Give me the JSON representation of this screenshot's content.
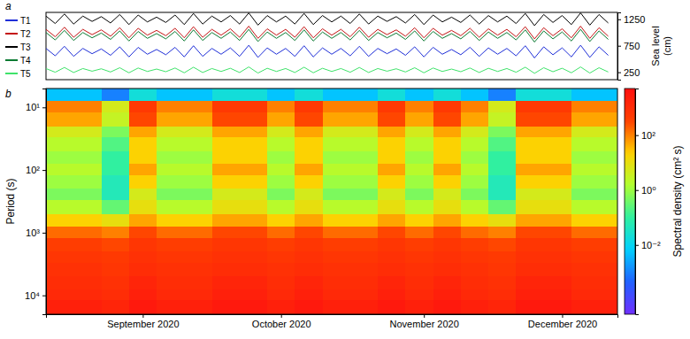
{
  "chart_data": [
    {
      "type": "line",
      "panel_label": "a",
      "x": [
        239,
        241,
        243,
        245,
        247,
        249,
        251,
        253,
        255,
        257,
        259,
        261,
        263,
        265,
        267,
        269,
        271,
        273,
        275,
        277,
        279,
        281,
        283,
        285,
        287,
        289,
        291,
        293,
        295,
        297,
        299,
        301,
        303,
        305,
        307,
        309,
        311,
        313,
        315,
        317,
        319,
        321,
        323,
        325,
        327,
        329,
        331,
        333,
        335,
        337,
        339,
        341,
        343,
        345,
        347,
        349,
        351,
        353,
        355,
        357,
        359,
        361
      ],
      "xlim": [
        239,
        363
      ],
      "ylim": [
        110,
        1380
      ],
      "yticks": [
        250,
        750,
        1250
      ],
      "ylabel": "Sea level (cm)",
      "tick_labels": "y",
      "legend": "left",
      "series": [
        {
          "name": "T1",
          "color": "#1f2fd8",
          "values": [
            700,
            560,
            740,
            550,
            700,
            600,
            690,
            570,
            730,
            540,
            720,
            590,
            680,
            580,
            720,
            540,
            750,
            550,
            700,
            590,
            710,
            550,
            760,
            530,
            710,
            590,
            700,
            550,
            750,
            540,
            710,
            590,
            700,
            560,
            740,
            550,
            700,
            600,
            690,
            570,
            730,
            540,
            720,
            590,
            680,
            580,
            720,
            550,
            710,
            590,
            700,
            560,
            750,
            520,
            730,
            580,
            710,
            540,
            760,
            530,
            730,
            570
          ]
        },
        {
          "name": "T2",
          "color": "#c41414",
          "values": [
            1060,
            920,
            1100,
            910,
            1060,
            960,
            1050,
            930,
            1090,
            900,
            1080,
            950,
            1040,
            940,
            1080,
            900,
            1110,
            910,
            1060,
            950,
            1070,
            910,
            1120,
            890,
            1070,
            950,
            1060,
            910,
            1110,
            900,
            1070,
            950,
            1060,
            920,
            1100,
            910,
            1060,
            960,
            1050,
            930,
            1090,
            900,
            1080,
            950,
            1040,
            940,
            1080,
            910,
            1070,
            950,
            1060,
            920,
            1110,
            880,
            1090,
            940,
            1070,
            900,
            1120,
            890,
            1090,
            930
          ]
        },
        {
          "name": "T3",
          "color": "#000000",
          "values": [
            1310,
            1170,
            1350,
            1160,
            1310,
            1210,
            1300,
            1180,
            1340,
            1150,
            1330,
            1200,
            1290,
            1190,
            1330,
            1150,
            1360,
            1160,
            1310,
            1200,
            1320,
            1160,
            1370,
            1140,
            1320,
            1200,
            1310,
            1160,
            1360,
            1150,
            1320,
            1200,
            1310,
            1170,
            1350,
            1160,
            1310,
            1210,
            1300,
            1180,
            1340,
            1150,
            1330,
            1200,
            1290,
            1190,
            1330,
            1160,
            1320,
            1200,
            1310,
            1170,
            1360,
            1130,
            1340,
            1190,
            1320,
            1150,
            1370,
            1140,
            1340,
            1180
          ]
        },
        {
          "name": "T4",
          "color": "#0a7a32",
          "values": [
            1000,
            860,
            1040,
            850,
            1000,
            900,
            990,
            870,
            1030,
            840,
            1020,
            890,
            980,
            880,
            1020,
            840,
            1050,
            850,
            1000,
            890,
            1010,
            850,
            1060,
            830,
            1010,
            890,
            1000,
            850,
            1050,
            840,
            1010,
            890,
            1000,
            860,
            1040,
            850,
            1000,
            900,
            990,
            870,
            1030,
            840,
            1020,
            890,
            980,
            880,
            1020,
            850,
            1010,
            890,
            1000,
            860,
            1050,
            820,
            1030,
            880,
            1010,
            840,
            1060,
            830,
            1030,
            870
          ]
        },
        {
          "name": "T5",
          "color": "#3fe36a",
          "values": [
            320,
            250,
            340,
            245,
            320,
            270,
            315,
            255,
            335,
            240,
            330,
            265,
            310,
            260,
            330,
            240,
            345,
            245,
            320,
            265,
            325,
            245,
            350,
            235,
            325,
            265,
            320,
            245,
            345,
            240,
            325,
            265,
            320,
            250,
            340,
            245,
            320,
            270,
            315,
            255,
            335,
            240,
            330,
            265,
            310,
            260,
            330,
            245,
            325,
            265,
            320,
            250,
            345,
            230,
            335,
            260,
            325,
            240,
            350,
            235,
            335,
            255
          ]
        }
      ]
    },
    {
      "type": "heatmap",
      "panel_label": "b",
      "log": true,
      "xlim": [
        239,
        363
      ],
      "ylim": [
        5,
        20000
      ],
      "xticks": [
        {
          "value": 260,
          "label": "September 2020"
        },
        {
          "value": 290,
          "label": "October 2020"
        },
        {
          "value": 321,
          "label": "November 2020"
        },
        {
          "value": 351,
          "label": "December 2020"
        }
      ],
      "yticks": [
        {
          "value": 10,
          "label": "10¹"
        },
        {
          "value": 100,
          "label": "10²"
        },
        {
          "value": 1000,
          "label": "10³"
        },
        {
          "value": 10000,
          "label": "10⁴"
        }
      ],
      "ylabel": "Period (s)",
      "x_edges": [
        239,
        245,
        251,
        257,
        263,
        269,
        275,
        281,
        287,
        293,
        299,
        305,
        311,
        317,
        323,
        329,
        335,
        341,
        347,
        353,
        359,
        363
      ],
      "y_edges": [
        5,
        8,
        12,
        20,
        30,
        50,
        80,
        120,
        200,
        300,
        500,
        800,
        1200,
        2000,
        3000,
        5000,
        8000,
        12000,
        20000
      ],
      "cells": [
        [
          0.005,
          0.005,
          0.001,
          0.02,
          0.005,
          0.005,
          0.02,
          0.02,
          0.005,
          0.02,
          0.005,
          0.005,
          0.02,
          0.005,
          0.02,
          0.005,
          0.001,
          0.02,
          0.02,
          0.005,
          0.005
        ],
        [
          100,
          100,
          5,
          500,
          100,
          100,
          500,
          500,
          100,
          500,
          100,
          100,
          500,
          100,
          500,
          100,
          5,
          500,
          500,
          100,
          100
        ],
        [
          50,
          50,
          3,
          300,
          50,
          50,
          300,
          300,
          50,
          300,
          50,
          50,
          300,
          50,
          300,
          50,
          3,
          300,
          300,
          50,
          50
        ],
        [
          5,
          5,
          0.5,
          50,
          5,
          5,
          50,
          50,
          5,
          50,
          5,
          5,
          50,
          5,
          50,
          5,
          0.5,
          50,
          50,
          5,
          5
        ],
        [
          2,
          2,
          0.2,
          20,
          2,
          2,
          20,
          20,
          2,
          20,
          2,
          2,
          20,
          2,
          20,
          2,
          0.2,
          20,
          20,
          2,
          2
        ],
        [
          1,
          1,
          0.1,
          20,
          1,
          1,
          20,
          20,
          1,
          20,
          1,
          1,
          20,
          1,
          20,
          1,
          0.1,
          20,
          20,
          1,
          1
        ],
        [
          2,
          2,
          0.1,
          50,
          2,
          2,
          50,
          50,
          2,
          50,
          2,
          2,
          50,
          2,
          50,
          2,
          0.1,
          50,
          50,
          2,
          2
        ],
        [
          1,
          1,
          0.05,
          20,
          1,
          1,
          20,
          20,
          1,
          20,
          1,
          1,
          20,
          1,
          20,
          1,
          0.05,
          20,
          20,
          1,
          1
        ],
        [
          0.5,
          0.5,
          0.05,
          5,
          0.5,
          0.5,
          5,
          5,
          0.5,
          5,
          0.5,
          0.5,
          5,
          0.5,
          5,
          0.5,
          0.05,
          5,
          5,
          0.5,
          0.5
        ],
        [
          2,
          2,
          0.3,
          10,
          2,
          2,
          10,
          10,
          2,
          10,
          2,
          2,
          10,
          2,
          10,
          2,
          0.3,
          10,
          10,
          2,
          2
        ],
        [
          20,
          20,
          10,
          50,
          20,
          20,
          50,
          50,
          20,
          50,
          20,
          20,
          50,
          20,
          50,
          20,
          10,
          50,
          50,
          20,
          20
        ],
        [
          150,
          150,
          100,
          300,
          150,
          150,
          300,
          300,
          150,
          300,
          150,
          150,
          300,
          150,
          300,
          150,
          100,
          300,
          300,
          150,
          150
        ],
        [
          400,
          400,
          300,
          600,
          400,
          400,
          600,
          600,
          400,
          600,
          400,
          400,
          600,
          400,
          600,
          400,
          300,
          600,
          600,
          400,
          400
        ],
        [
          600,
          600,
          500,
          800,
          600,
          600,
          800,
          800,
          600,
          800,
          600,
          600,
          800,
          600,
          800,
          600,
          500,
          800,
          800,
          600,
          600
        ],
        [
          800,
          800,
          600,
          1000,
          800,
          800,
          1000,
          1000,
          800,
          1000,
          800,
          800,
          1000,
          800,
          1000,
          800,
          600,
          1000,
          1000,
          800,
          800
        ],
        [
          1000,
          1000,
          800,
          1500,
          1000,
          1000,
          1500,
          1500,
          1000,
          1500,
          1000,
          1000,
          1500,
          1000,
          1500,
          1000,
          800,
          1500,
          1500,
          1000,
          1000
        ],
        [
          1200,
          1200,
          1000,
          2000,
          1200,
          1200,
          2000,
          2000,
          1200,
          2000,
          1200,
          1200,
          2000,
          1200,
          2000,
          1200,
          1000,
          2000,
          2000,
          1200,
          1200
        ],
        [
          2000,
          2000,
          1500,
          3000,
          2000,
          2000,
          3000,
          3000,
          2000,
          3000,
          2000,
          2000,
          3000,
          2000,
          3000,
          2000,
          1500,
          3000,
          3000,
          2000,
          2000
        ]
      ],
      "colorbar": {
        "title": "Spectral density (cm² s)",
        "lim": [
          3e-05,
          5000
        ],
        "ticks": [
          {
            "value": 0.01,
            "label": "10⁻²"
          },
          {
            "value": 1,
            "label": "10⁰"
          },
          {
            "value": 100,
            "label": "10²"
          }
        ]
      }
    }
  ]
}
